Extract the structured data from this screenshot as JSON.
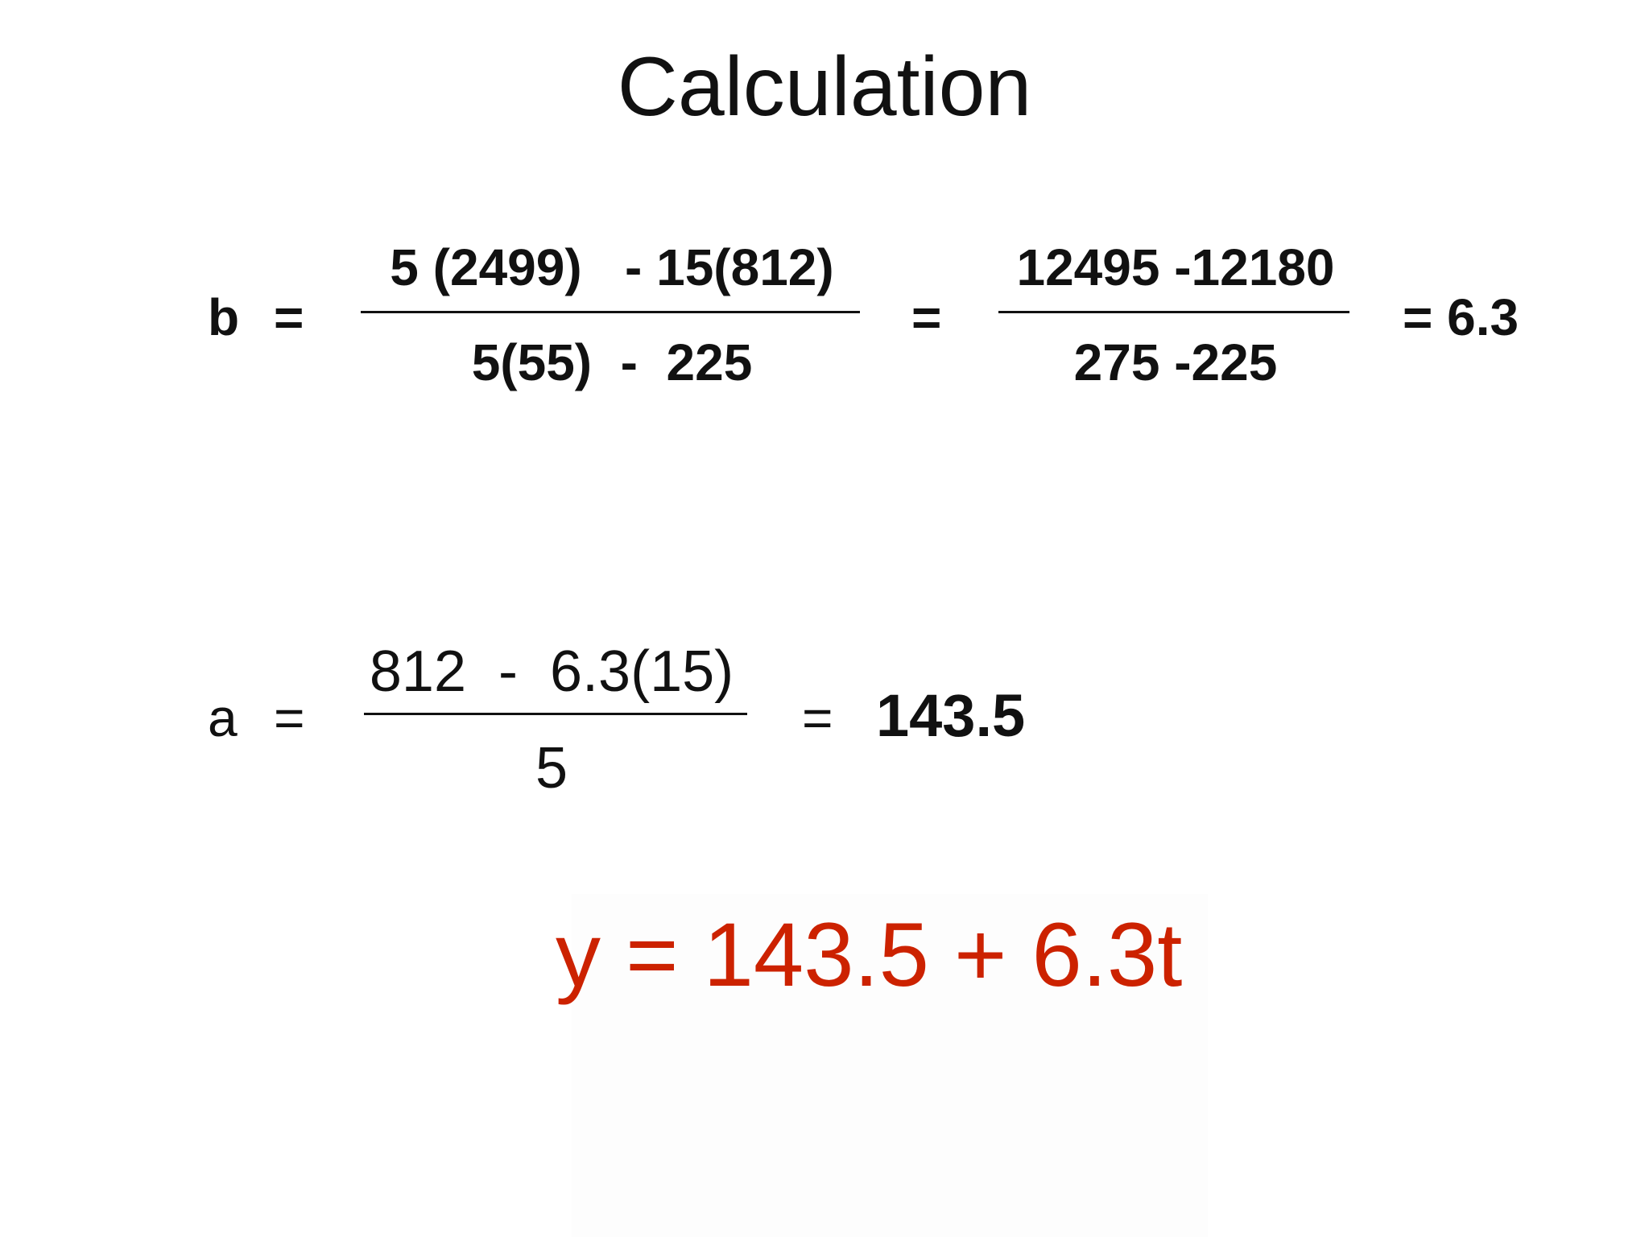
{
  "slide": {
    "title": "Calculation"
  },
  "b_equation": {
    "variable": "b",
    "equals": "=",
    "fraction1_numerator": "5 (2499)   - 15(812)",
    "fraction1_denominator": "5(55)  -  225",
    "equals2": "=",
    "fraction2_numerator": "12495 -12180",
    "fraction2_denominator": "275 -225",
    "result": "= 6.3"
  },
  "a_equation": {
    "variable": "a",
    "equals": "=",
    "numerator": "812  -  6.3(15)",
    "denominator": "5",
    "equals2": "=",
    "result": "143.5"
  },
  "final_equation": {
    "text": "y = 143.5 + 6.3t",
    "color": "#cc2200"
  }
}
